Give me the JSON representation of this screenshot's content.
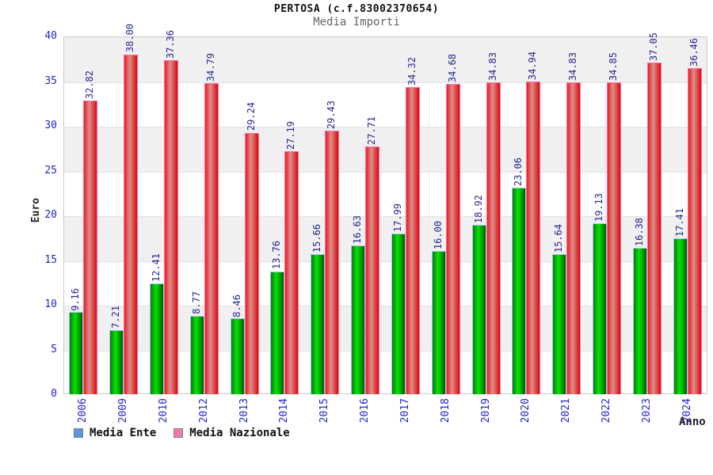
{
  "header": {
    "title": "PERTOSA (c.f.83002370654)",
    "subtitle": "Media Importi"
  },
  "chart_data": {
    "type": "bar",
    "title": "PERTOSA (c.f.83002370654)",
    "subtitle": "Media Importi",
    "xlabel": "Anno",
    "ylabel": "Euro",
    "ylim": [
      0,
      40
    ],
    "ytick_step": 5,
    "grid": true,
    "band_fill": "#f0f0f0",
    "legend_position": "bottom",
    "axis_tick_color": "#2424cc",
    "value_label_color": "#28288e",
    "categories": [
      "2006",
      "2009",
      "2010",
      "2012",
      "2013",
      "2014",
      "2015",
      "2016",
      "2017",
      "2018",
      "2019",
      "2020",
      "2021",
      "2022",
      "2023",
      "2024"
    ],
    "series": [
      {
        "name": "Media Ente",
        "values": [
          9.16,
          7.21,
          12.41,
          8.77,
          8.46,
          13.76,
          15.66,
          16.63,
          17.99,
          16.0,
          18.92,
          23.06,
          15.64,
          19.13,
          16.38,
          17.41
        ],
        "labels": [
          "9.16",
          "7.21",
          "12.41",
          "8.77",
          "8.46",
          "13.76",
          "15.66",
          "16.63",
          "17.99",
          "16.00",
          "18.92",
          "23.06",
          "15.64",
          "19.13",
          "16.38",
          "17.41"
        ],
        "gradient": [
          "#117711",
          "#00e600",
          "#005c00"
        ],
        "border_color": "#9ecbf5",
        "legend_swatch": "#5b97dd"
      },
      {
        "name": "Media Nazionale",
        "values": [
          32.82,
          38.0,
          37.36,
          34.79,
          29.24,
          27.19,
          29.43,
          27.71,
          34.32,
          34.68,
          34.83,
          34.94,
          34.83,
          34.85,
          37.05,
          36.46
        ],
        "labels": [
          "32.82",
          "38.00",
          "37.36",
          "34.79",
          "29.24",
          "27.19",
          "29.43",
          "27.71",
          "34.32",
          "34.68",
          "34.83",
          "34.94",
          "34.83",
          "34.85",
          "37.05",
          "36.46"
        ],
        "gradient": [
          "#ee1c1c",
          "#d98f8f",
          "#dd0808"
        ],
        "border_color": "#ff6fb0",
        "legend_swatch": "#ef7bae"
      }
    ]
  }
}
